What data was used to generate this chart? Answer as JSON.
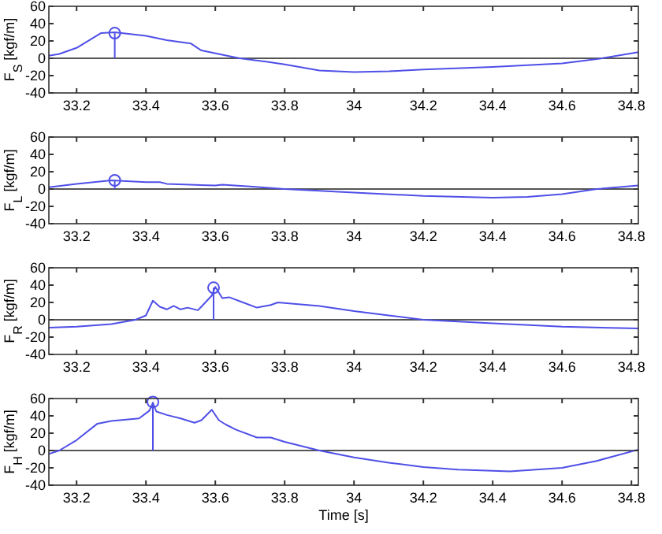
{
  "chart_data": [
    {
      "type": "line",
      "ylabel": "F$_{S}$ [kgf/m]",
      "xlim": [
        33.12,
        34.82
      ],
      "ylim": [
        -40,
        60
      ],
      "xticks": [
        33.2,
        33.4,
        33.6,
        33.8,
        34,
        34.2,
        34.4,
        34.6,
        34.8
      ],
      "yticks": [
        -40,
        -20,
        0,
        20,
        40,
        60
      ],
      "ref_lines": [
        {
          "axis": "y",
          "value": 0,
          "color": "#555555"
        }
      ],
      "series": [
        {
          "type": "line",
          "color": "#4f4fe8",
          "x": [
            33.12,
            33.15,
            33.2,
            33.27,
            33.31,
            33.4,
            33.46,
            33.53,
            33.56,
            33.62,
            33.67,
            33.75,
            33.8,
            33.9,
            34.0,
            34.1,
            34.2,
            34.4,
            34.6,
            34.7,
            34.82
          ],
          "values": [
            3,
            5,
            12,
            29,
            30,
            26,
            21,
            17,
            9,
            4,
            0,
            -4,
            -7,
            -14,
            -16,
            -15,
            -13,
            -10,
            -6,
            -1,
            7
          ]
        },
        {
          "type": "lollipop",
          "color": "#4f4fe8",
          "marker": "circle",
          "x": [
            33.31
          ],
          "values": [
            29
          ]
        }
      ]
    },
    {
      "type": "line",
      "ylabel": "F$_{L}$ [kgf/m]",
      "xlim": [
        33.12,
        34.82
      ],
      "ylim": [
        -40,
        60
      ],
      "xticks": [
        33.2,
        33.4,
        33.6,
        33.8,
        34,
        34.2,
        34.4,
        34.6,
        34.8
      ],
      "yticks": [
        -40,
        -20,
        0,
        20,
        40,
        60
      ],
      "ref_lines": [
        {
          "axis": "y",
          "value": 0,
          "color": "#555555"
        }
      ],
      "series": [
        {
          "type": "line",
          "color": "#4f4fe8",
          "x": [
            33.12,
            33.2,
            33.3,
            33.4,
            33.44,
            33.46,
            33.6,
            33.62,
            33.7,
            33.8,
            33.9,
            34.0,
            34.2,
            34.4,
            34.5,
            34.6,
            34.7,
            34.82
          ],
          "values": [
            2,
            6,
            10,
            8,
            8,
            6,
            4,
            5,
            3,
            0,
            -2,
            -4,
            -8,
            -10,
            -9,
            -6,
            0,
            4
          ]
        },
        {
          "type": "lollipop",
          "color": "#4f4fe8",
          "marker": "circle",
          "x": [
            33.31
          ],
          "values": [
            10
          ]
        }
      ]
    },
    {
      "type": "line",
      "ylabel": "F$_{R}$ [kgf/m]",
      "xlim": [
        33.12,
        34.82
      ],
      "ylim": [
        -40,
        60
      ],
      "xticks": [
        33.2,
        33.4,
        33.6,
        33.8,
        34,
        34.2,
        34.4,
        34.6,
        34.8
      ],
      "yticks": [
        -40,
        -20,
        0,
        20,
        40,
        60
      ],
      "ref_lines": [
        {
          "axis": "y",
          "value": 0,
          "color": "#555555"
        }
      ],
      "series": [
        {
          "type": "line",
          "color": "#4f4fe8",
          "x": [
            33.12,
            33.2,
            33.3,
            33.37,
            33.4,
            33.42,
            33.44,
            33.46,
            33.48,
            33.5,
            33.52,
            33.55,
            33.59,
            33.6,
            33.62,
            33.64,
            33.68,
            33.72,
            33.76,
            33.78,
            33.9,
            34.0,
            34.1,
            34.2,
            34.4,
            34.6,
            34.82
          ],
          "values": [
            -9,
            -8,
            -5,
            0,
            5,
            22,
            15,
            12,
            16,
            12,
            14,
            11,
            28,
            38,
            25,
            26,
            20,
            14,
            17,
            20,
            16,
            10,
            5,
            0,
            -4,
            -8,
            -10
          ]
        },
        {
          "type": "lollipop",
          "color": "#4f4fe8",
          "marker": "circle",
          "x": [
            33.595
          ],
          "values": [
            37
          ]
        }
      ]
    },
    {
      "type": "line",
      "xlabel": "Time [s]",
      "ylabel": "F$_{H}$ [kgf/m]",
      "xlim": [
        33.12,
        34.82
      ],
      "ylim": [
        -40,
        60
      ],
      "xticks": [
        33.2,
        33.4,
        33.6,
        33.8,
        34,
        34.2,
        34.4,
        34.6,
        34.8
      ],
      "yticks": [
        -40,
        -20,
        0,
        20,
        40,
        60
      ],
      "ref_lines": [
        {
          "axis": "y",
          "value": 0,
          "color": "#555555"
        }
      ],
      "series": [
        {
          "type": "line",
          "color": "#4f4fe8",
          "x": [
            33.12,
            33.15,
            33.2,
            33.26,
            33.3,
            33.38,
            33.41,
            33.42,
            33.43,
            33.46,
            33.5,
            33.54,
            33.56,
            33.59,
            33.61,
            33.63,
            33.66,
            33.72,
            33.76,
            33.8,
            33.9,
            34.0,
            34.1,
            34.2,
            34.3,
            34.45,
            34.6,
            34.7,
            34.82
          ],
          "values": [
            -4,
            0,
            12,
            31,
            34,
            37,
            46,
            55,
            45,
            41,
            37,
            32,
            35,
            47,
            35,
            30,
            24,
            15,
            15,
            10,
            0,
            -8,
            -14,
            -19,
            -22,
            -24,
            -20,
            -12,
            1
          ]
        },
        {
          "type": "lollipop",
          "color": "#4f4fe8",
          "marker": "circle",
          "x": [
            33.42
          ],
          "values": [
            56
          ]
        }
      ]
    }
  ]
}
